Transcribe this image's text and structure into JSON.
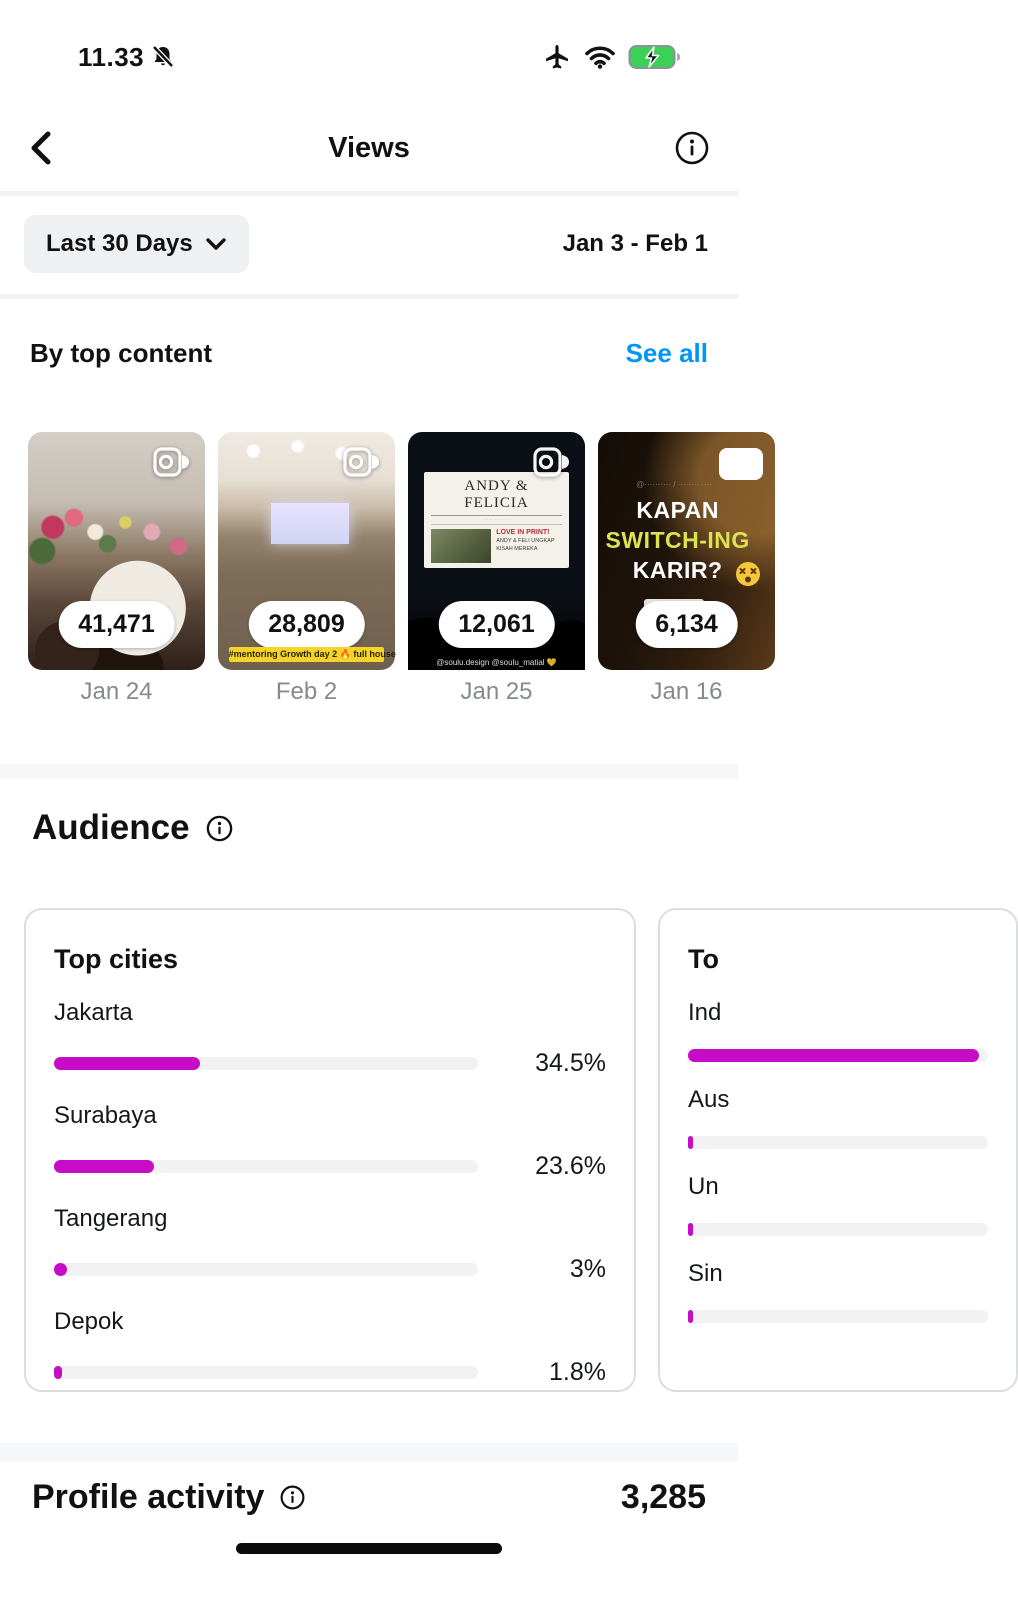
{
  "status_bar": {
    "time": "11.33",
    "icons": [
      "bell-muted-icon",
      "airplane-icon",
      "wifi-icon",
      "battery-charging-icon"
    ],
    "battery_color": "#3BD158"
  },
  "header": {
    "title": "Views"
  },
  "filter": {
    "range_label": "Last 30 Days",
    "date_range": "Jan 3 - Feb 1"
  },
  "top_content": {
    "title": "By top content",
    "see_all_label": "See all",
    "items": [
      {
        "views": "41,471",
        "date": "Jan 24",
        "media_type": "reel"
      },
      {
        "views": "28,809",
        "date": "Feb 2",
        "media_type": "reel",
        "caption_strip": "#mentoring Growth day 2 🔥 full house"
      },
      {
        "views": "12,061",
        "date": "Jan 25",
        "media_type": "reel",
        "screen_headline": "ANDY & FELICIA",
        "screen_sub1": "LOVE IN PRINT!",
        "screen_sub2": "ANDY & FELI UNGKAP KISAH MEREKA",
        "caption": "@soulu.design @soulu_matial 💛"
      },
      {
        "views": "6,134",
        "date": "Jan 16",
        "media_type": "post",
        "overlay_line1": "KAPAN",
        "overlay_line2": "SWITCH-ING",
        "overlay_line3": "KARIR?"
      }
    ]
  },
  "audience": {
    "title": "Audience",
    "chart_data": {
      "type": "bar",
      "title": "Top cities",
      "categories": [
        "Jakarta",
        "Surabaya",
        "Tangerang",
        "Depok"
      ],
      "values": [
        34.5,
        23.6,
        3,
        1.8
      ]
    },
    "top_cities": {
      "title": "Top cities",
      "rows": [
        {
          "label": "Jakarta",
          "value": "34.5%",
          "pct": 34.5
        },
        {
          "label": "Surabaya",
          "value": "23.6%",
          "pct": 23.6
        },
        {
          "label": "Tangerang",
          "value": "3%",
          "pct": 3
        },
        {
          "label": "Depok",
          "value": "1.8%",
          "pct": 1.8
        }
      ]
    },
    "top_countries_partial": {
      "title": "To",
      "rows": [
        {
          "label": "Ind",
          "pct": 97
        },
        {
          "label": "Aus",
          "pct": 1.5
        },
        {
          "label": "Un",
          "pct": 1.5
        },
        {
          "label": "Sin",
          "pct": 1.5
        }
      ]
    }
  },
  "profile_activity": {
    "label": "Profile activity",
    "value": "3,285"
  },
  "colors": {
    "accent_magenta": "#C60CC6",
    "link_blue": "#0095F6"
  }
}
